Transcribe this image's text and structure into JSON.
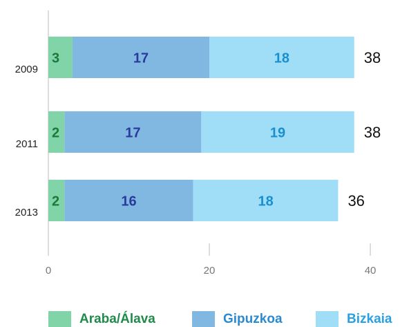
{
  "chart_data": {
    "type": "stacked-bar-horizontal",
    "categories": [
      "2009",
      "2011",
      "2013"
    ],
    "series": [
      {
        "name": "Araba/Álava",
        "color": "#80d4a8",
        "values": [
          3,
          2,
          2
        ]
      },
      {
        "name": "Gipuzkoa",
        "color": "#80b8e2",
        "values": [
          17,
          17,
          16
        ]
      },
      {
        "name": "Bizkaia",
        "color": "#a0def8",
        "values": [
          18,
          19,
          18
        ]
      }
    ],
    "totals": [
      38,
      38,
      36
    ],
    "xlim": [
      0,
      43
    ],
    "xticks": [
      0,
      20,
      40
    ],
    "legend": "bottom"
  }
}
